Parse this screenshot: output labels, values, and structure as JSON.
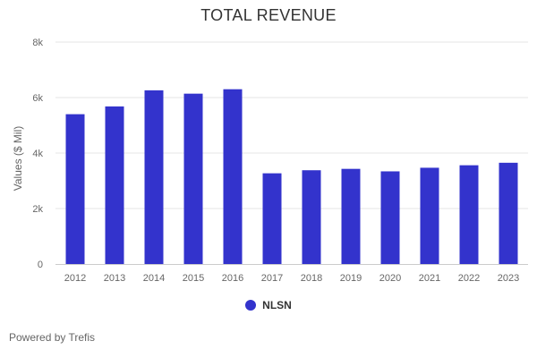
{
  "chart_data": {
    "type": "bar",
    "title": "TOTAL REVENUE",
    "xlabel": "",
    "ylabel": "Values ($ Mil)",
    "categories": [
      "2012",
      "2013",
      "2014",
      "2015",
      "2016",
      "2017",
      "2018",
      "2019",
      "2020",
      "2021",
      "2022",
      "2023"
    ],
    "series": [
      {
        "name": "NLSN",
        "values": [
          5400,
          5680,
          6260,
          6140,
          6300,
          3270,
          3380,
          3430,
          3340,
          3470,
          3560,
          3650
        ]
      }
    ],
    "ylim": [
      0,
      8000
    ],
    "yticks": [
      0,
      2000,
      4000,
      6000,
      8000
    ],
    "ytick_labels": [
      "0",
      "2k",
      "4k",
      "6k",
      "8k"
    ],
    "grid": true,
    "legend_position": "bottom-center"
  },
  "colors": {
    "series": "#3333cc",
    "grid": "#e6e6e6",
    "axis_line": "#cccccc"
  },
  "credits": "Powered by Trefis"
}
